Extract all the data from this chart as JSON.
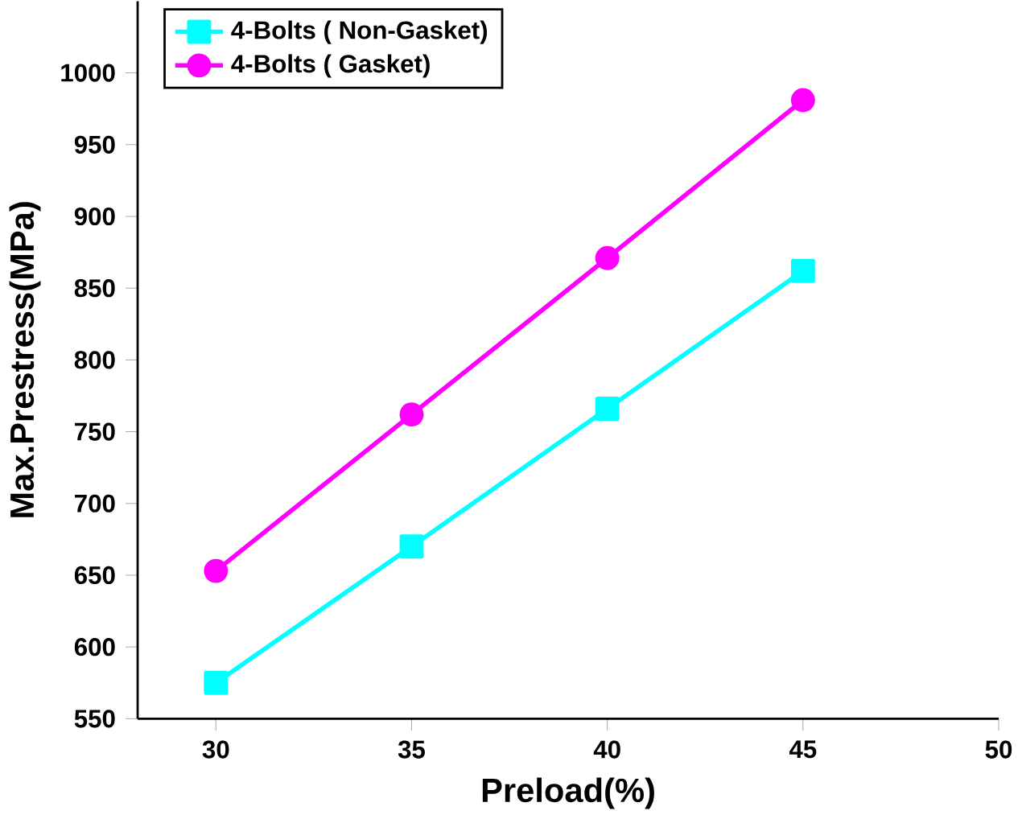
{
  "chart_data": {
    "type": "line",
    "xlabel": "Preload(%)",
    "ylabel": "Max.Prestress(MPa)",
    "x": [
      30,
      35,
      40,
      45
    ],
    "series": [
      {
        "name": "4-Bolts ( Non-Gasket)",
        "color": "#00ffff",
        "marker": "square",
        "values": [
          575,
          670,
          766,
          862
        ]
      },
      {
        "name": "4-Bolts ( Gasket)",
        "color": "#ff00ff",
        "marker": "circle",
        "values": [
          653,
          762,
          871,
          981
        ]
      }
    ],
    "xlim": [
      28,
      50
    ],
    "ylim": [
      550,
      1050
    ],
    "xticks": [
      30,
      35,
      40,
      45,
      50
    ],
    "yticks": [
      550,
      600,
      650,
      700,
      750,
      800,
      850,
      900,
      950,
      1000
    ],
    "legend": "top left",
    "grid": false
  }
}
